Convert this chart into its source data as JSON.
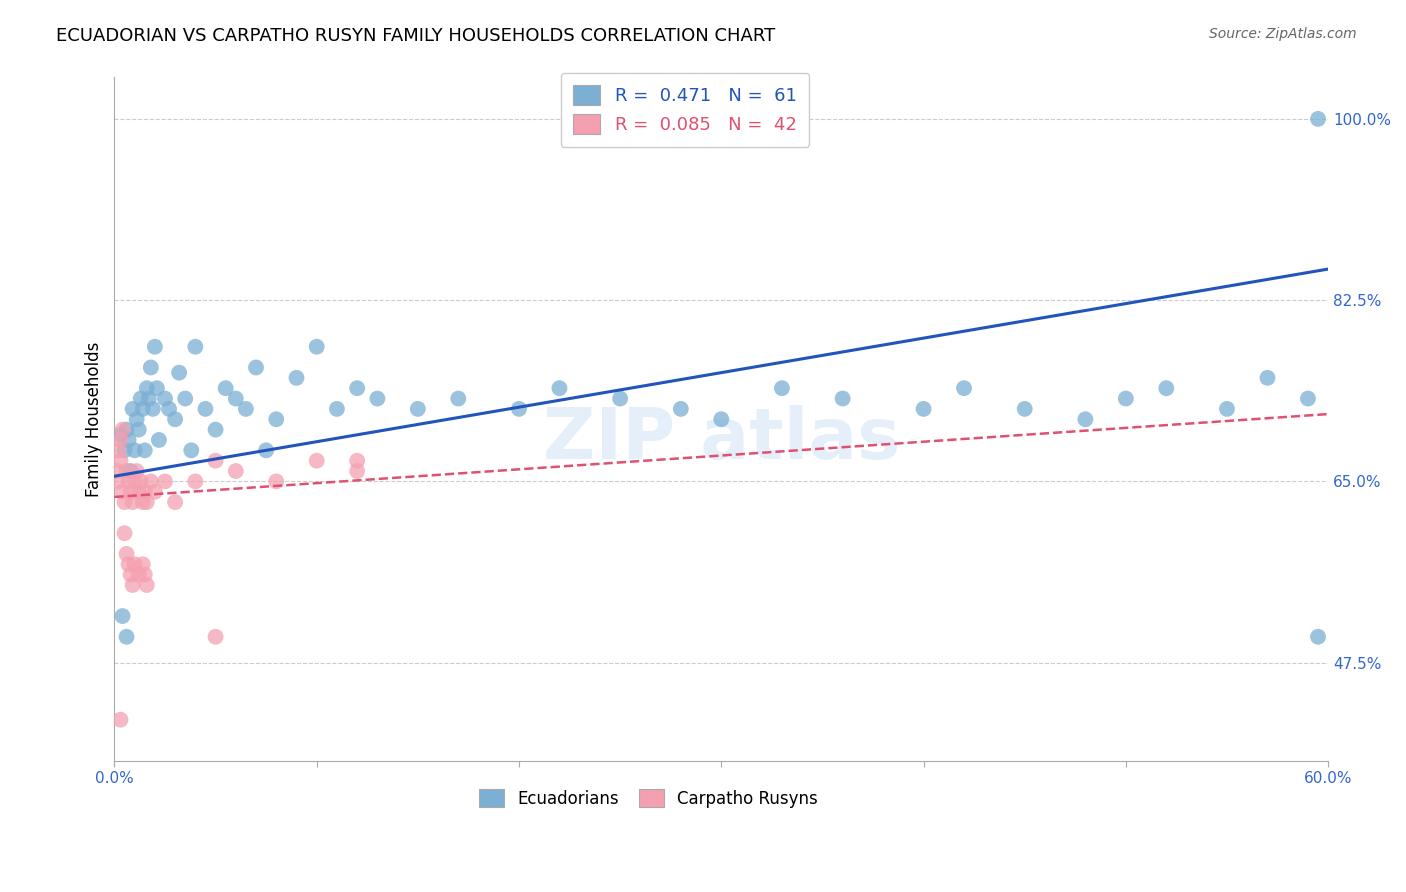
{
  "title": "ECUADORIAN VS CARPATHO RUSYN FAMILY HOUSEHOLDS CORRELATION CHART",
  "source": "Source: ZipAtlas.com",
  "ylabel": "Family Households",
  "ytick_labels": [
    "47.5%",
    "65.0%",
    "82.5%",
    "100.0%"
  ],
  "ytick_values": [
    0.475,
    0.65,
    0.825,
    1.0
  ],
  "xlim": [
    0.0,
    0.6
  ],
  "ylim": [
    0.38,
    1.04
  ],
  "legend1_label": "R =  0.471   N =  61",
  "legend2_label": "R =  0.085   N =  42",
  "blue_color": "#7bafd4",
  "pink_color": "#f4a0b0",
  "blue_line_color": "#2255bb",
  "pink_line_color": "#e05070",
  "ecuadorians_x": [
    0.003,
    0.005,
    0.006,
    0.007,
    0.008,
    0.009,
    0.01,
    0.011,
    0.012,
    0.013,
    0.014,
    0.015,
    0.016,
    0.017,
    0.018,
    0.019,
    0.02,
    0.021,
    0.022,
    0.025,
    0.027,
    0.03,
    0.032,
    0.035,
    0.038,
    0.04,
    0.045,
    0.05,
    0.055,
    0.06,
    0.065,
    0.07,
    0.075,
    0.08,
    0.09,
    0.1,
    0.11,
    0.12,
    0.13,
    0.15,
    0.17,
    0.2,
    0.22,
    0.25,
    0.28,
    0.3,
    0.33,
    0.36,
    0.4,
    0.42,
    0.45,
    0.48,
    0.5,
    0.52,
    0.55,
    0.57,
    0.59,
    0.595,
    0.004,
    0.006,
    0.595
  ],
  "ecuadorians_y": [
    0.695,
    0.68,
    0.7,
    0.69,
    0.66,
    0.72,
    0.68,
    0.71,
    0.7,
    0.73,
    0.72,
    0.68,
    0.74,
    0.73,
    0.76,
    0.72,
    0.78,
    0.74,
    0.69,
    0.73,
    0.72,
    0.71,
    0.755,
    0.73,
    0.68,
    0.78,
    0.72,
    0.7,
    0.74,
    0.73,
    0.72,
    0.76,
    0.68,
    0.71,
    0.75,
    0.78,
    0.72,
    0.74,
    0.73,
    0.72,
    0.73,
    0.72,
    0.74,
    0.73,
    0.72,
    0.71,
    0.74,
    0.73,
    0.72,
    0.74,
    0.72,
    0.71,
    0.73,
    0.74,
    0.72,
    0.75,
    0.73,
    0.5,
    0.52,
    0.5,
    1.0
  ],
  "carpatho_x": [
    0.001,
    0.002,
    0.003,
    0.004,
    0.005,
    0.006,
    0.007,
    0.008,
    0.009,
    0.01,
    0.011,
    0.012,
    0.013,
    0.014,
    0.015,
    0.016,
    0.018,
    0.02,
    0.025,
    0.03,
    0.04,
    0.05,
    0.06,
    0.08,
    0.1,
    0.12,
    0.002,
    0.003,
    0.004,
    0.005,
    0.006,
    0.007,
    0.008,
    0.009,
    0.01,
    0.012,
    0.014,
    0.015,
    0.016,
    0.05,
    0.12,
    0.003
  ],
  "carpatho_y": [
    0.66,
    0.65,
    0.67,
    0.64,
    0.63,
    0.66,
    0.65,
    0.64,
    0.63,
    0.65,
    0.66,
    0.64,
    0.65,
    0.63,
    0.64,
    0.63,
    0.65,
    0.64,
    0.65,
    0.63,
    0.65,
    0.67,
    0.66,
    0.65,
    0.67,
    0.66,
    0.68,
    0.69,
    0.7,
    0.6,
    0.58,
    0.57,
    0.56,
    0.55,
    0.57,
    0.56,
    0.57,
    0.56,
    0.55,
    0.5,
    0.67,
    0.42
  ],
  "blue_trend_x": [
    0.0,
    0.6
  ],
  "blue_trend_y": [
    0.655,
    0.855
  ],
  "pink_trend_x": [
    0.0,
    0.6
  ],
  "pink_trend_y": [
    0.635,
    0.715
  ],
  "background_color": "#ffffff",
  "grid_color": "#cccccc"
}
